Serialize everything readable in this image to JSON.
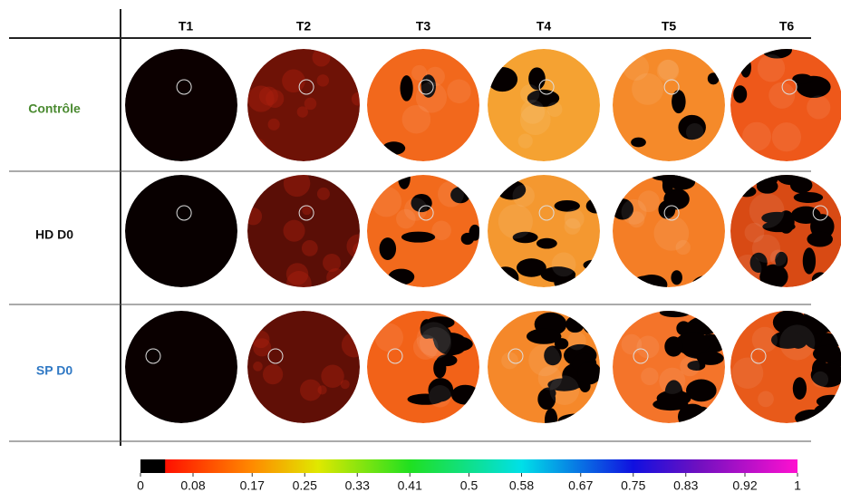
{
  "columns": [
    "T1",
    "T2",
    "T3",
    "T4",
    "T5",
    "T6"
  ],
  "rows": [
    {
      "label": "Contrôle",
      "color": "#4a8a30"
    },
    {
      "label": "HD D0",
      "color": "#111111"
    },
    {
      "label": "SP D0",
      "color": "#2f78c4"
    }
  ],
  "colorbar": {
    "lim": [
      0,
      1
    ],
    "ticks": [
      0,
      0.08,
      0.17,
      0.25,
      0.33,
      0.41,
      0.5,
      0.58,
      0.67,
      0.75,
      0.83,
      0.92,
      1
    ]
  }
}
